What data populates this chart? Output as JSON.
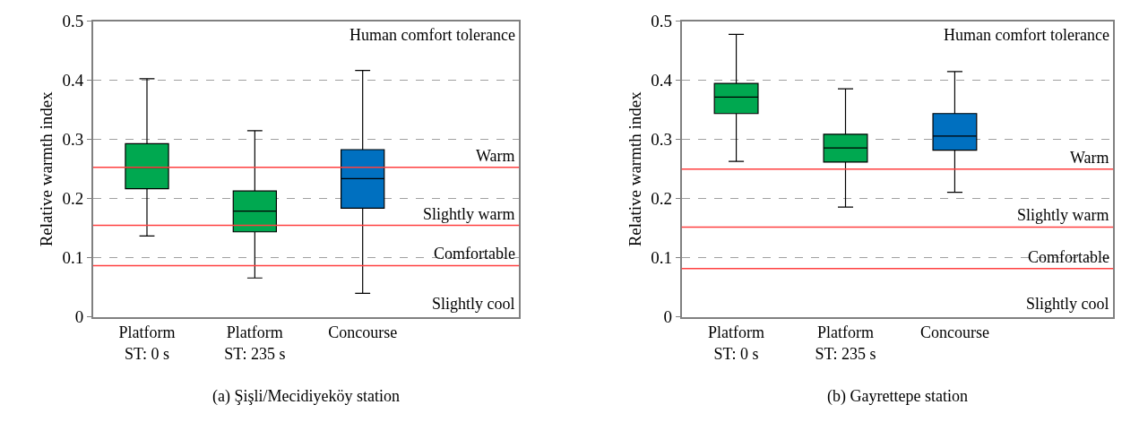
{
  "chart_data": [
    {
      "type": "box",
      "title": "(a) Şişli/Mecidiyeköy station",
      "ylabel": "Relative warmth index",
      "categories": [
        "Platform\nST: 0 s",
        "Platform\nST: 235 s",
        "Concourse"
      ],
      "colors": [
        "#00a850",
        "#00a850",
        "#0070c0"
      ],
      "boxes": [
        {
          "low": 0.137,
          "q1": 0.217,
          "median": 0.253,
          "q3": 0.293,
          "high": 0.403
        },
        {
          "low": 0.066,
          "q1": 0.144,
          "median": 0.179,
          "q3": 0.213,
          "high": 0.315
        },
        {
          "low": 0.04,
          "q1": 0.184,
          "median": 0.234,
          "q3": 0.283,
          "high": 0.417
        }
      ],
      "ylim": [
        0,
        0.5
      ],
      "yticks": [
        0,
        0.1,
        0.2,
        0.3,
        0.4,
        0.5
      ],
      "grid": "y",
      "ref_lines": [
        {
          "axis": "y",
          "value": 0.253,
          "label": "Warm",
          "color": "#ff4040"
        },
        {
          "axis": "y",
          "value": 0.155,
          "label": "Slightly warm",
          "color": "#ff4040"
        },
        {
          "axis": "y",
          "value": 0.087,
          "label": "Comfortable",
          "color": "#ff4040"
        }
      ],
      "annotations": [
        "Human comfort tolerance",
        "Slightly cool"
      ]
    },
    {
      "type": "box",
      "title": "(b) Gayrettepe station",
      "ylabel": "Relative warmth index",
      "categories": [
        "Platform\nST: 0 s",
        "Platform\nST: 235 s",
        "Concourse"
      ],
      "colors": [
        "#00a850",
        "#00a850",
        "#0070c0"
      ],
      "boxes": [
        {
          "low": 0.263,
          "q1": 0.344,
          "median": 0.372,
          "q3": 0.395,
          "high": 0.478
        },
        {
          "low": 0.186,
          "q1": 0.262,
          "median": 0.286,
          "q3": 0.309,
          "high": 0.386
        },
        {
          "low": 0.211,
          "q1": 0.282,
          "median": 0.306,
          "q3": 0.344,
          "high": 0.415
        }
      ],
      "ylim": [
        0,
        0.5
      ],
      "yticks": [
        0,
        0.1,
        0.2,
        0.3,
        0.4,
        0.5
      ],
      "grid": "y",
      "ref_lines": [
        {
          "axis": "y",
          "value": 0.25,
          "label": "Warm",
          "color": "#ff4040"
        },
        {
          "axis": "y",
          "value": 0.152,
          "label": "Slightly warm",
          "color": "#ff4040"
        },
        {
          "axis": "y",
          "value": 0.082,
          "label": "Comfortable",
          "color": "#ff4040"
        }
      ],
      "annotations": [
        "Human comfort tolerance",
        "Slightly cool"
      ]
    }
  ]
}
